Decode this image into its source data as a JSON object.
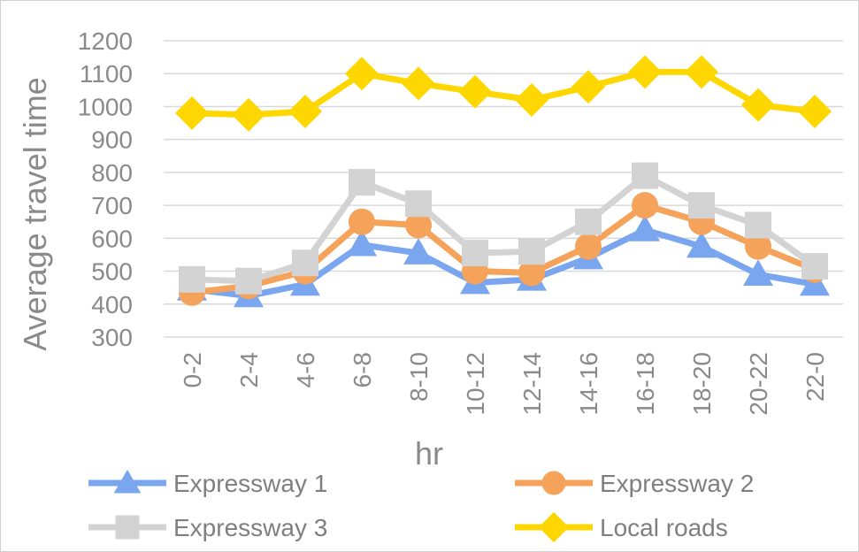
{
  "chart_data": {
    "type": "line",
    "title": "",
    "xlabel": "hr",
    "ylabel": "Average travel time",
    "ylim": [
      300,
      1200
    ],
    "yticks": [
      300,
      400,
      500,
      600,
      700,
      800,
      900,
      1000,
      1100,
      1200
    ],
    "grid": true,
    "legend_position": "bottom",
    "categories": [
      "0-2",
      "2-4",
      "4-6",
      "6-8",
      "8-10",
      "10-12",
      "12-14",
      "14-16",
      "16-18",
      "18-20",
      "20-22",
      "22-0"
    ],
    "series": [
      {
        "name": "Expressway 1",
        "color": "#7aa6f0",
        "marker": "triangle",
        "values": [
          445,
          425,
          460,
          580,
          555,
          465,
          475,
          540,
          625,
          575,
          490,
          460
        ]
      },
      {
        "name": "Expressway 2",
        "color": "#f5a25a",
        "marker": "circle",
        "values": [
          435,
          455,
          500,
          650,
          640,
          500,
          495,
          575,
          700,
          650,
          575,
          505
        ]
      },
      {
        "name": "Expressway 3",
        "color": "#d3d3d3",
        "marker": "square",
        "values": [
          475,
          470,
          525,
          770,
          705,
          555,
          560,
          650,
          790,
          700,
          640,
          515
        ]
      },
      {
        "name": "Local roads",
        "color": "#ffd700",
        "marker": "diamond",
        "values": [
          980,
          975,
          985,
          1100,
          1070,
          1045,
          1020,
          1060,
          1105,
          1105,
          1005,
          985
        ]
      }
    ]
  }
}
